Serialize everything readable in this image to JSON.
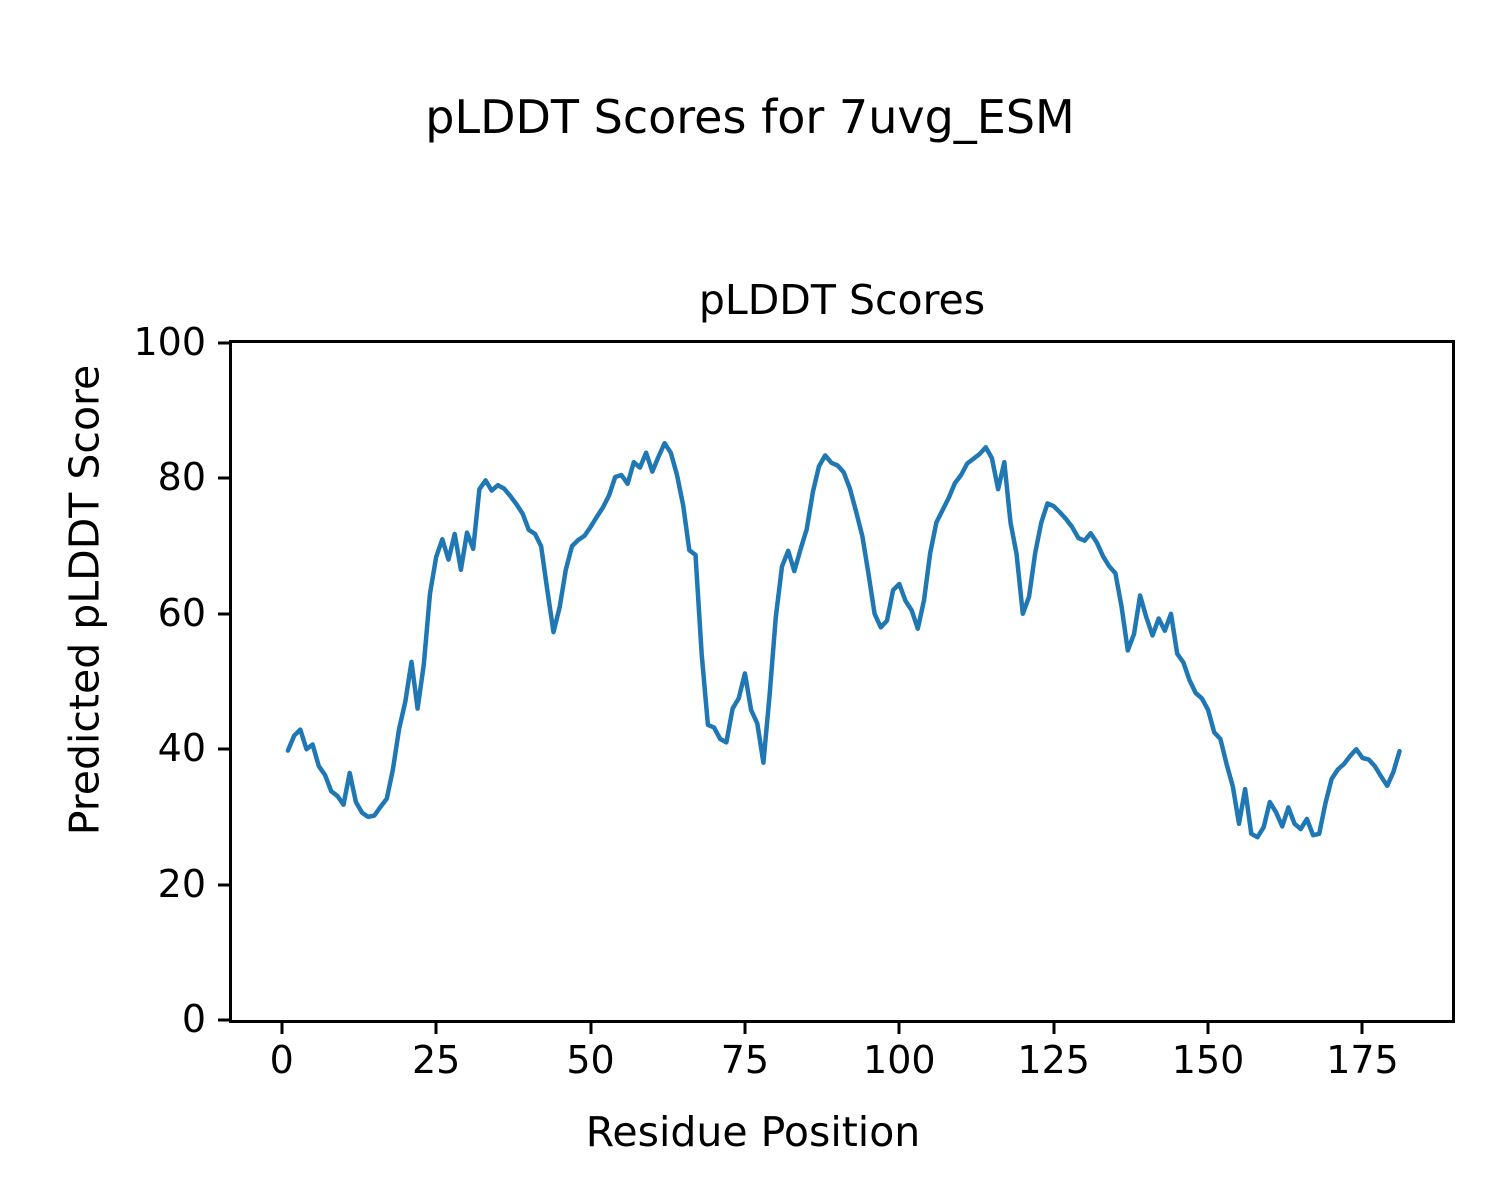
{
  "figure": {
    "suptitle": "pLDDT Scores for 7uvg_ESM",
    "axes_title": "pLDDT Scores",
    "xlabel": "Residue Position",
    "ylabel": "Predicted pLDDT Score"
  },
  "chart_data": {
    "type": "line",
    "title": "pLDDT Scores",
    "suptitle": "pLDDT Scores for 7uvg_ESM",
    "xlabel": "Residue Position",
    "ylabel": "Predicted pLDDT Score",
    "xlim": [
      -8.06,
      189.5
    ],
    "ylim": [
      0,
      100
    ],
    "x_ticks": [
      0,
      25,
      50,
      75,
      100,
      125,
      150,
      175
    ],
    "y_ticks": [
      0,
      20,
      40,
      60,
      80,
      100
    ],
    "grid": false,
    "legend": null,
    "line_color": "#1f77b4",
    "line_width": 4.5,
    "series": [
      {
        "name": "pLDDT",
        "x_start": 1,
        "x_step": 1,
        "y": [
          39.8,
          42.0,
          42.9,
          40.0,
          40.7,
          37.5,
          36.2,
          33.8,
          33.1,
          31.8,
          36.5,
          32.2,
          30.6,
          30.0,
          30.2,
          31.5,
          32.7,
          37.0,
          43.0,
          47.0,
          52.9,
          46.0,
          52.5,
          63.0,
          68.4,
          71.0,
          68.0,
          71.8,
          66.5,
          72.0,
          69.6,
          78.4,
          79.7,
          78.2,
          79.0,
          78.5,
          77.4,
          76.2,
          74.8,
          72.4,
          71.8,
          70.0,
          63.5,
          57.3,
          61.0,
          66.5,
          70.0,
          70.9,
          71.5,
          72.8,
          74.3,
          75.7,
          77.5,
          80.2,
          80.5,
          79.2,
          82.4,
          81.6,
          83.8,
          81.0,
          83.2,
          85.2,
          83.8,
          80.5,
          76.0,
          69.4,
          68.7,
          54.0,
          43.6,
          43.2,
          41.5,
          41.0,
          46.0,
          47.5,
          51.2,
          45.8,
          43.8,
          38.0,
          48.0,
          59.5,
          67.0,
          69.3,
          66.3,
          69.5,
          72.5,
          78.0,
          81.8,
          83.4,
          82.3,
          81.9,
          80.9,
          78.5,
          75.1,
          71.5,
          66.0,
          60.0,
          58.0,
          59.0,
          63.5,
          64.4,
          61.9,
          60.5,
          57.8,
          62.0,
          69.0,
          73.5,
          75.3,
          77.1,
          79.3,
          80.5,
          82.2,
          82.9,
          83.6,
          84.6,
          83.0,
          78.4,
          82.4,
          73.5,
          68.8,
          60.0,
          62.5,
          69.0,
          73.5,
          76.3,
          75.9,
          75.0,
          74.0,
          72.8,
          71.2,
          70.8,
          71.9,
          70.5,
          68.5,
          67.0,
          66.0,
          61.0,
          54.6,
          57.0,
          62.7,
          59.5,
          56.8,
          59.3,
          57.5,
          60.0,
          54.1,
          52.8,
          50.2,
          48.3,
          47.5,
          45.8,
          42.5,
          41.5,
          37.8,
          34.5,
          29.0,
          34.1,
          27.5,
          27.0,
          28.5,
          32.2,
          30.7,
          28.6,
          31.4,
          29.0,
          28.2,
          29.7,
          27.3,
          27.5,
          32.0,
          35.6,
          37.0,
          37.8,
          39.0,
          40.0,
          38.7,
          38.5,
          37.5,
          36.0,
          34.6,
          36.6,
          39.7
        ]
      }
    ]
  }
}
